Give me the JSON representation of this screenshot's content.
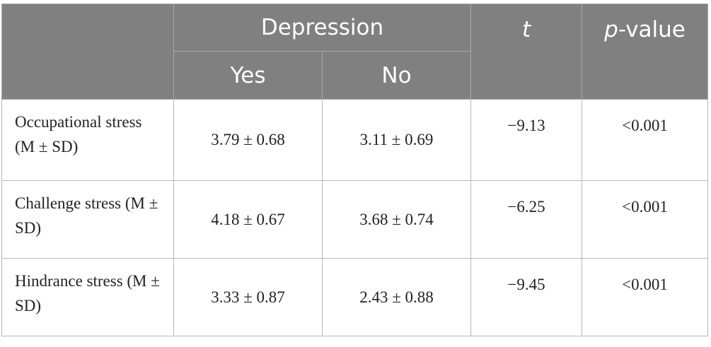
{
  "table": {
    "header": {
      "group": "Depression",
      "yes": "Yes",
      "no": "No",
      "t": "t",
      "p_italic": "p",
      "p_rest": "-value"
    },
    "rows": [
      [
        "Occupational stress (M ± SD)",
        "3.79 ± 0.68",
        "3.11 ± 0.69",
        "−9.13",
        "<0.001"
      ],
      [
        "Challenge stress (M ± SD)",
        "4.18 ± 0.67",
        "3.68 ± 0.74",
        "−6.25",
        "<0.001"
      ],
      [
        "Hindrance stress (M ± SD)",
        "3.33 ± 0.87",
        "2.43 ± 0.88",
        "−9.45",
        "<0.001"
      ]
    ]
  }
}
